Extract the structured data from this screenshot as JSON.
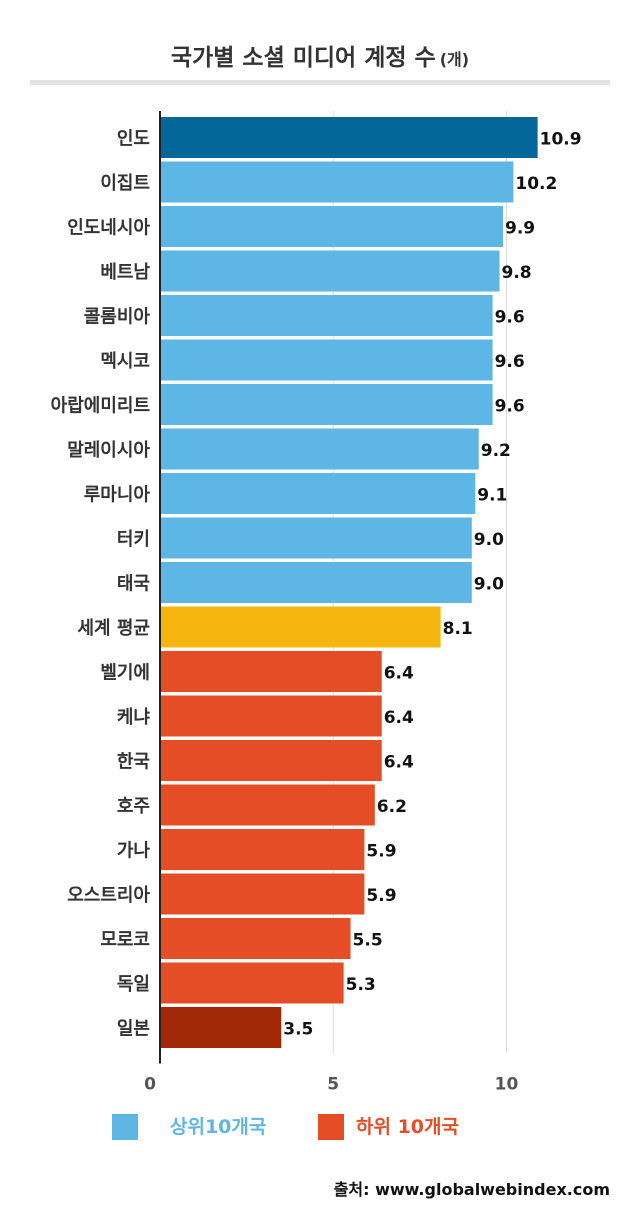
{
  "title": {
    "main": "국가별 소셜 미디어 계정 수",
    "unit": "(개)"
  },
  "chart_data": {
    "type": "bar",
    "orientation": "horizontal",
    "categories": [
      "인도",
      "이집트",
      "인도네시아",
      "베트남",
      "콜롬비아",
      "멕시코",
      "아랍에미리트",
      "말레이시아",
      "루마니아",
      "터키",
      "태국",
      "세계 평균",
      "벨기에",
      "케냐",
      "한국",
      "호주",
      "가나",
      "오스트리아",
      "모로코",
      "독일",
      "일본"
    ],
    "values": [
      10.9,
      10.2,
      9.9,
      9.8,
      9.6,
      9.6,
      9.6,
      9.2,
      9.1,
      9.0,
      9.0,
      8.1,
      6.4,
      6.4,
      6.4,
      6.2,
      5.9,
      5.9,
      5.5,
      5.3,
      3.5
    ],
    "value_labels": [
      "10.9",
      "10.2",
      "9.9",
      "9.8",
      "9.6",
      "9.6",
      "9.6",
      "9.2",
      "9.1",
      "9.0",
      "9.0",
      "8.1",
      "6.4",
      "6.4",
      "6.4",
      "6.2",
      "5.9",
      "5.9",
      "5.5",
      "5.3",
      "3.5"
    ],
    "bar_groups": [
      "top-first",
      "top",
      "top",
      "top",
      "top",
      "top",
      "top",
      "top",
      "top",
      "top",
      "top",
      "average",
      "bottom",
      "bottom",
      "bottom",
      "bottom",
      "bottom",
      "bottom",
      "bottom",
      "bottom",
      "bottom-last"
    ],
    "xlim": [
      0,
      12.7
    ],
    "xticks": [
      0,
      5,
      10
    ],
    "xtick_labels": [
      "0",
      "5",
      "10"
    ],
    "grid": true,
    "legend_position": "bottom",
    "series": [
      {
        "name": "상위10개국",
        "group": "top"
      },
      {
        "name": "하위 10개국",
        "group": "bottom"
      }
    ]
  },
  "colors": {
    "top-first": "#04679A",
    "top": "#5DB6E4",
    "average": "#F5B70F",
    "bottom": "#E44D25",
    "bottom-last": "#A02806",
    "axis": "#222222",
    "grid": "#dddddd",
    "tick_text": "#555555",
    "category_text": "#333333",
    "value_text": "#111111",
    "legend_top_text": "#5DB6E4",
    "legend_bottom_text": "#E44D25"
  },
  "legend": {
    "top_label": "상위10개국",
    "bottom_label": "하위 10개국"
  },
  "source": "출처: www.globalwebindex.com"
}
